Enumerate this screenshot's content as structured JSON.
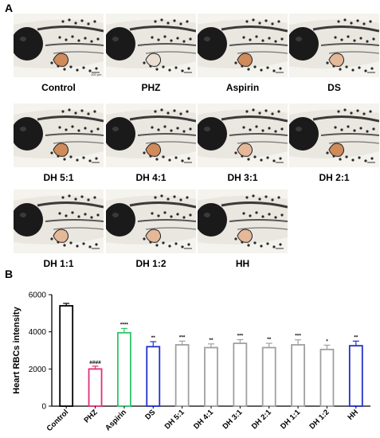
{
  "panels": {
    "a": "A",
    "b": "B"
  },
  "images": [
    {
      "label": "Control",
      "heart": "orange"
    },
    {
      "label": "PHZ",
      "heart": "faint"
    },
    {
      "label": "Aspirin",
      "heart": "orange"
    },
    {
      "label": "DS",
      "heart": "light"
    },
    {
      "label": "DH 5:1",
      "heart": "orange"
    },
    {
      "label": "DH 4:1",
      "heart": "orange"
    },
    {
      "label": "DH 3:1",
      "heart": "light"
    },
    {
      "label": "DH 2:1",
      "heart": "orange"
    },
    {
      "label": "DH 1:1",
      "heart": "light"
    },
    {
      "label": "DH 1:2",
      "heart": "light"
    },
    {
      "label": "HH",
      "heart": "light"
    }
  ],
  "scale_bar": "100 μm",
  "chart_data": {
    "type": "bar",
    "ylabel": "Heart RBCs intensity",
    "xlabel": "",
    "ylim": [
      0,
      6000
    ],
    "yticks": [
      0,
      2000,
      4000,
      6000
    ],
    "categories": [
      "Control",
      "PHZ",
      "Aspirin",
      "DS",
      "DH 5:1",
      "DH 4:1",
      "DH 3:1",
      "DH 2:1",
      "DH 1:1",
      "DH 1:2",
      "HH"
    ],
    "values": [
      5400,
      2000,
      3950,
      3200,
      3300,
      3150,
      3380,
      3150,
      3300,
      3050,
      3250
    ],
    "errors": [
      130,
      150,
      230,
      270,
      200,
      200,
      200,
      230,
      270,
      230,
      250
    ],
    "significance": [
      "",
      "####",
      "****",
      "**",
      "***",
      "**",
      "***",
      "**",
      "***",
      "*",
      "**"
    ],
    "colors": [
      "#000000",
      "#e0307a",
      "#2ec46a",
      "#2230c8",
      "#a0a0a0",
      "#a0a0a0",
      "#a0a0a0",
      "#a0a0a0",
      "#a0a0a0",
      "#a0a0a0",
      "#2230c8"
    ]
  }
}
